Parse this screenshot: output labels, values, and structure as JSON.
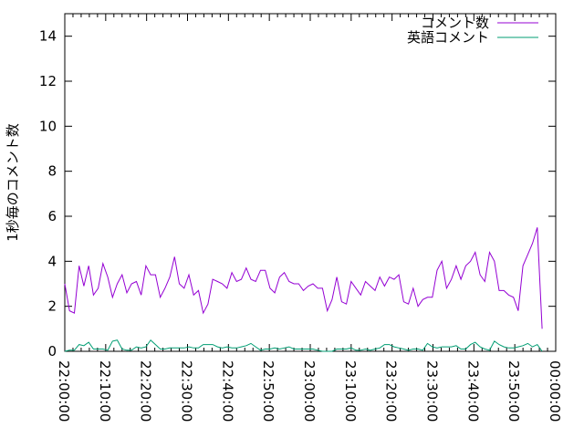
{
  "chart_data": {
    "type": "line",
    "title": "",
    "xlabel": "",
    "ylabel": "1秒毎のコメント数",
    "xlim": [
      "22:00:00",
      "00:00:00"
    ],
    "ylim": [
      0,
      15
    ],
    "x_ticks": [
      "22:00:00",
      "22:10:00",
      "22:20:00",
      "22:30:00",
      "22:40:00",
      "22:50:00",
      "23:00:00",
      "23:10:00",
      "23:20:00",
      "23:30:00",
      "23:40:00",
      "23:50:00",
      "00:00:00"
    ],
    "y_ticks": [
      "0",
      "2",
      "4",
      "6",
      "8",
      "10",
      "12",
      "14"
    ],
    "grid": false,
    "legend": "top-right",
    "x": [
      "22:00:00",
      "22:01:10",
      "22:02:20",
      "22:03:30",
      "22:04:40",
      "22:05:50",
      "22:07:00",
      "22:08:10",
      "22:09:20",
      "22:10:30",
      "22:11:40",
      "22:12:50",
      "22:14:00",
      "22:15:10",
      "22:16:20",
      "22:17:30",
      "22:18:40",
      "22:19:50",
      "22:21:00",
      "22:22:10",
      "22:23:20",
      "22:24:30",
      "22:25:40",
      "22:26:50",
      "22:28:00",
      "22:29:10",
      "22:30:20",
      "22:31:30",
      "22:32:40",
      "22:33:50",
      "22:35:00",
      "22:36:10",
      "22:37:20",
      "22:38:30",
      "22:39:40",
      "22:40:50",
      "22:42:00",
      "22:43:10",
      "22:44:20",
      "22:45:30",
      "22:46:40",
      "22:47:50",
      "22:49:00",
      "22:50:10",
      "22:51:20",
      "22:52:30",
      "22:53:40",
      "22:54:50",
      "22:56:00",
      "22:57:10",
      "22:58:20",
      "22:59:30",
      "23:00:40",
      "23:01:50",
      "23:03:00",
      "23:04:10",
      "23:05:20",
      "23:06:30",
      "23:07:40",
      "23:08:50",
      "23:10:00",
      "23:11:10",
      "23:12:20",
      "23:13:30",
      "23:14:40",
      "23:15:50",
      "23:17:00",
      "23:18:10",
      "23:19:20",
      "23:20:30",
      "23:21:40",
      "23:22:50",
      "23:24:00",
      "23:25:10",
      "23:26:20",
      "23:27:30",
      "23:28:40",
      "23:29:50",
      "23:31:00",
      "23:32:10",
      "23:33:20",
      "23:34:30",
      "23:35:40",
      "23:36:50",
      "23:38:00",
      "23:39:10",
      "23:40:20",
      "23:41:30",
      "23:42:40",
      "23:43:50",
      "23:45:00",
      "23:46:10",
      "23:47:20",
      "23:48:30",
      "23:49:40",
      "23:50:50",
      "23:52:00",
      "23:53:10",
      "23:54:20",
      "23:55:30",
      "23:56:40"
    ],
    "series": [
      {
        "name": "コメント数",
        "color": "#9400d3",
        "values": [
          3.0,
          1.8,
          1.7,
          3.8,
          2.9,
          3.8,
          2.5,
          2.8,
          3.9,
          3.3,
          2.4,
          3.0,
          3.4,
          2.6,
          3.0,
          3.1,
          2.5,
          3.8,
          3.4,
          3.4,
          2.4,
          2.8,
          3.3,
          4.2,
          3.0,
          2.8,
          3.4,
          2.5,
          2.7,
          1.7,
          2.1,
          3.2,
          3.1,
          3.0,
          2.8,
          3.5,
          3.1,
          3.2,
          3.7,
          3.2,
          3.1,
          3.6,
          3.6,
          2.8,
          2.6,
          3.3,
          3.5,
          3.1,
          3.0,
          3.0,
          2.7,
          2.9,
          3.0,
          2.8,
          2.8,
          1.8,
          2.3,
          3.3,
          2.2,
          2.1,
          3.1,
          2.8,
          2.5,
          3.1,
          2.9,
          2.7,
          3.3,
          2.9,
          3.3,
          3.2,
          3.4,
          2.2,
          2.1,
          2.8,
          2.0,
          2.3,
          2.4,
          2.4,
          3.6,
          4.0,
          2.8,
          3.2,
          3.8,
          3.2,
          3.8,
          4.0,
          4.4,
          3.4,
          3.1,
          4.4,
          4.0,
          2.7,
          2.7,
          2.5,
          2.4,
          1.8,
          3.8,
          4.3,
          4.8,
          5.5,
          1.0
        ]
      },
      {
        "name": "英語コメント",
        "color": "#009e73",
        "values": [
          0,
          0.05,
          0.05,
          0.3,
          0.25,
          0.4,
          0.1,
          0.1,
          0.1,
          0.05,
          0.45,
          0.5,
          0.1,
          0.05,
          0.05,
          0.2,
          0.15,
          0.2,
          0.5,
          0.3,
          0.1,
          0.1,
          0.15,
          0.15,
          0.15,
          0.15,
          0.2,
          0.15,
          0.15,
          0.3,
          0.3,
          0.3,
          0.2,
          0.15,
          0.2,
          0.15,
          0.15,
          0.2,
          0.25,
          0.35,
          0.2,
          0.05,
          0.1,
          0.1,
          0.15,
          0.1,
          0.15,
          0.2,
          0.1,
          0.1,
          0.1,
          0.1,
          0.1,
          0.05,
          0,
          0,
          0,
          0.1,
          0.1,
          0.1,
          0.15,
          0.05,
          0.05,
          0.1,
          0.05,
          0.1,
          0.15,
          0.3,
          0.3,
          0.2,
          0.15,
          0.1,
          0.05,
          0.1,
          0.1,
          0.05,
          0.35,
          0.2,
          0.15,
          0.2,
          0.2,
          0.2,
          0.25,
          0.1,
          0.1,
          0.3,
          0.4,
          0.2,
          0.1,
          0.05,
          0.45,
          0.3,
          0.2,
          0.15,
          0.15,
          0.2,
          0.25,
          0.35,
          0.2,
          0.3,
          0
        ]
      }
    ]
  }
}
